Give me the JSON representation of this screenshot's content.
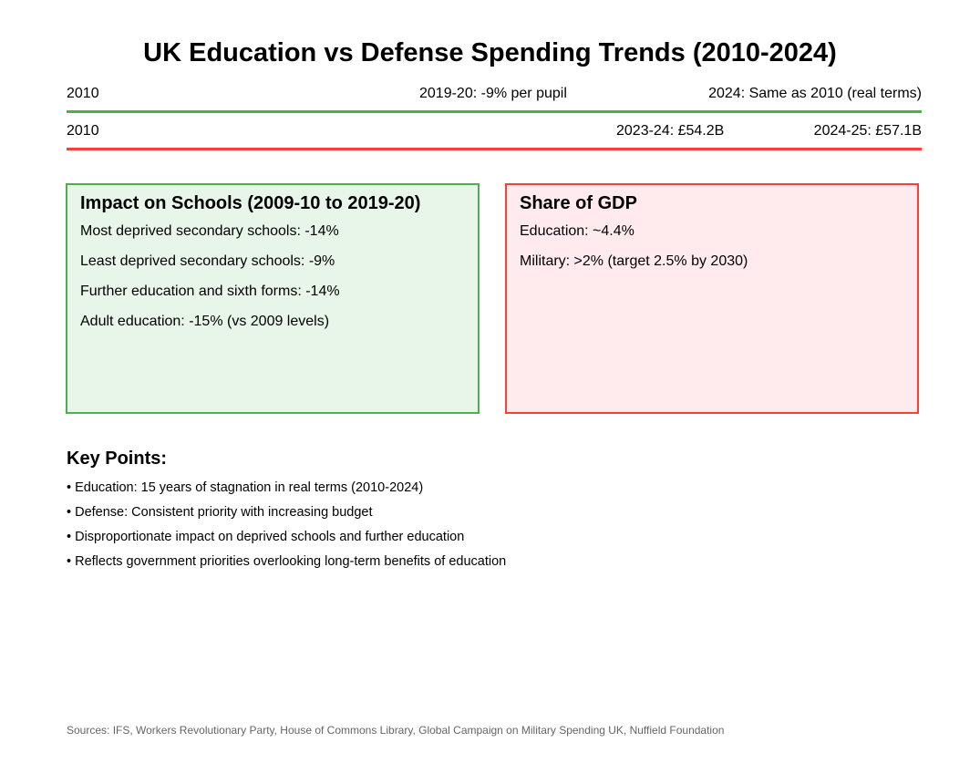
{
  "title": "UK Education vs Defense Spending Trends (2010-2024)",
  "education_timeline": {
    "start": "2010",
    "middle": "2019-20: -9% per pupil",
    "end": "2024: Same as 2010 (real terms)",
    "color": "#4caf50"
  },
  "defense_timeline": {
    "start": "2010",
    "middle": "2023-24: £54.2B",
    "end": "2024-25: £57.1B",
    "color": "#f44336"
  },
  "impact_box": {
    "heading": "Impact on Schools (2009-10 to 2019-20)",
    "items": [
      "Most deprived secondary schools: -14%",
      "Least deprived secondary schools: -9%",
      "Further education and sixth forms: -14%",
      "Adult education: -15% (vs 2009 levels)"
    ],
    "border_color": "#4caf50",
    "background": "#e8f5e9"
  },
  "gdp_box": {
    "heading": "Share of GDP",
    "items": [
      "Education: ~4.4%",
      "Military: >2% (target 2.5% by 2030)"
    ],
    "border_color": "#f44336",
    "background": "#ffebee"
  },
  "key_points": {
    "heading": "Key Points:",
    "items": [
      "• Education: 15 years of stagnation in real terms (2010-2024)",
      "• Defense: Consistent priority with increasing budget",
      "• Disproportionate impact on deprived schools and further education",
      "• Reflects government priorities overlooking long-term benefits of education"
    ]
  },
  "sources": "Sources: IFS, Workers Revolutionary Party, House of Commons Library, Global Campaign on Military Spending UK, Nuffield Foundation"
}
